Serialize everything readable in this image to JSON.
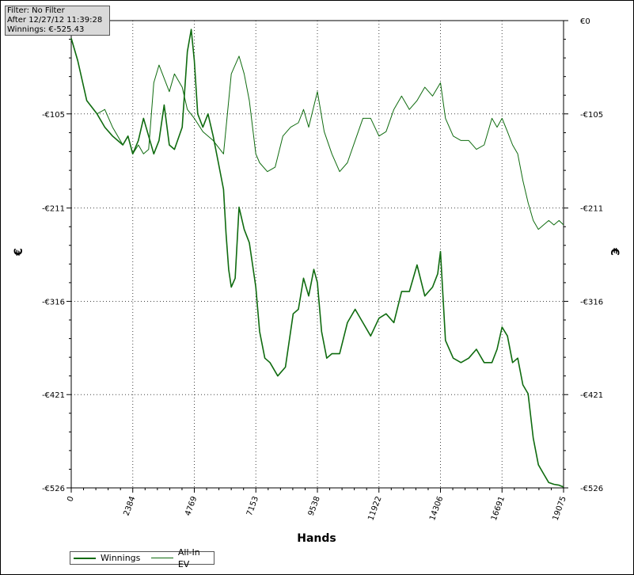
{
  "info_box": {
    "filter": "Filter: No Filter",
    "after": "After 12/27/12 11:39:28",
    "winnings": "Winnings: €-525.43"
  },
  "colors": {
    "line": "#0f6b0f",
    "grid": "#444444"
  },
  "chart_data": {
    "type": "line",
    "xlabel": "Hands",
    "ylabel": "€",
    "ylabel_right": "€",
    "xlim": [
      0,
      19075
    ],
    "ylim": [
      -526,
      0
    ],
    "x_ticks": [
      0,
      2384,
      4769,
      7153,
      9538,
      11922,
      14306,
      16691,
      19075
    ],
    "x_tick_labels": [
      "0",
      "2384",
      "4769",
      "7153",
      "9538",
      "11922",
      "14306",
      "16691",
      "19075"
    ],
    "y_ticks": [
      0,
      -105,
      -211,
      -316,
      -421,
      -526
    ],
    "y_tick_labels_left": [
      "",
      "-€105",
      "-€211",
      "-€316",
      "-€421",
      "-€526"
    ],
    "y_tick_labels_right": [
      "€0",
      "-€105",
      "-€211",
      "-€316",
      "-€421",
      "-€526"
    ],
    "grid": true,
    "legend_position": "bottom-left",
    "series": [
      {
        "name": "Winnings",
        "style": "thick",
        "x": [
          0,
          250,
          600,
          1000,
          1300,
          1600,
          1800,
          2000,
          2200,
          2384,
          2600,
          2800,
          3000,
          3200,
          3400,
          3600,
          3800,
          4000,
          4300,
          4500,
          4650,
          4769,
          4900,
          5100,
          5300,
          5500,
          5700,
          5900,
          6000,
          6100,
          6200,
          6350,
          6500,
          6700,
          6900,
          7000,
          7153,
          7300,
          7500,
          7700,
          8000,
          8300,
          8600,
          8800,
          9000,
          9200,
          9400,
          9538,
          9700,
          9900,
          10100,
          10400,
          10700,
          11000,
          11300,
          11600,
          11922,
          12200,
          12500,
          12800,
          13100,
          13400,
          13700,
          14000,
          14200,
          14306,
          14500,
          14800,
          15100,
          15400,
          15700,
          16000,
          16300,
          16500,
          16691,
          16900,
          17100,
          17300,
          17500,
          17700,
          17900,
          18100,
          18300,
          18500,
          18700,
          18900,
          19075
        ],
        "values": [
          -20,
          -45,
          -90,
          -105,
          -120,
          -130,
          -135,
          -140,
          -130,
          -150,
          -135,
          -110,
          -130,
          -150,
          -135,
          -95,
          -140,
          -145,
          -120,
          -35,
          -10,
          -45,
          -105,
          -120,
          -105,
          -130,
          -160,
          -190,
          -240,
          -280,
          -300,
          -290,
          -210,
          -235,
          -250,
          -270,
          -300,
          -350,
          -380,
          -385,
          -400,
          -390,
          -330,
          -325,
          -290,
          -310,
          -280,
          -295,
          -350,
          -380,
          -375,
          -375,
          -340,
          -325,
          -340,
          -355,
          -335,
          -330,
          -340,
          -305,
          -305,
          -275,
          -310,
          -300,
          -285,
          -260,
          -360,
          -380,
          -385,
          -380,
          -370,
          -385,
          -385,
          -370,
          -345,
          -355,
          -385,
          -380,
          -410,
          -420,
          -470,
          -500,
          -510,
          -520,
          -522,
          -523,
          -525
        ]
      },
      {
        "name": "All-In EV",
        "style": "thin",
        "x": [
          0,
          250,
          600,
          1000,
          1300,
          1600,
          1800,
          2000,
          2200,
          2384,
          2600,
          2800,
          3000,
          3200,
          3400,
          3600,
          3800,
          4000,
          4300,
          4500,
          4769,
          5100,
          5500,
          5900,
          6200,
          6500,
          6700,
          6900,
          7153,
          7300,
          7600,
          7900,
          8200,
          8500,
          8800,
          9000,
          9200,
          9538,
          9800,
          10100,
          10400,
          10700,
          11000,
          11300,
          11600,
          11922,
          12200,
          12500,
          12800,
          13100,
          13400,
          13700,
          14000,
          14306,
          14500,
          14800,
          15100,
          15400,
          15700,
          16000,
          16300,
          16500,
          16691,
          16900,
          17100,
          17300,
          17500,
          17700,
          17900,
          18100,
          18300,
          18500,
          18700,
          18900,
          19075
        ],
        "values": [
          -20,
          -45,
          -90,
          -105,
          -100,
          -120,
          -130,
          -140,
          -130,
          -150,
          -140,
          -150,
          -145,
          -70,
          -50,
          -65,
          -80,
          -60,
          -75,
          -100,
          -110,
          -125,
          -135,
          -150,
          -60,
          -40,
          -60,
          -90,
          -150,
          -160,
          -170,
          -165,
          -130,
          -120,
          -115,
          -100,
          -120,
          -80,
          -125,
          -150,
          -170,
          -160,
          -135,
          -110,
          -110,
          -130,
          -125,
          -100,
          -85,
          -100,
          -90,
          -75,
          -85,
          -70,
          -110,
          -130,
          -135,
          -135,
          -145,
          -140,
          -110,
          -120,
          -110,
          -125,
          -140,
          -150,
          -180,
          -205,
          -225,
          -235,
          -230,
          -225,
          -230,
          -225,
          -230
        ]
      }
    ]
  }
}
